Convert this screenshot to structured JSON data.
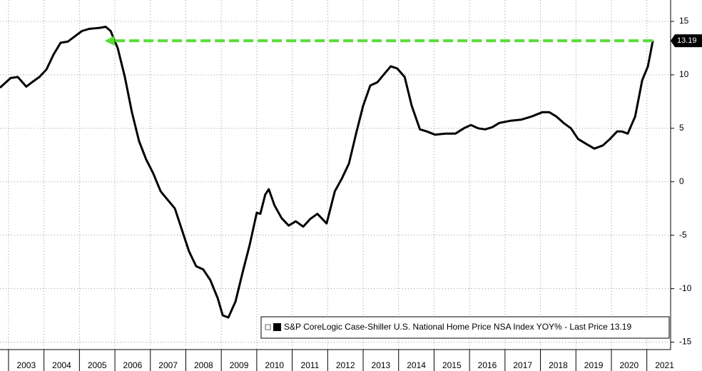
{
  "chart_data": {
    "type": "line",
    "series": [
      {
        "name": "S&P CoreLogic Case-Shiller U.S. National Home Price NSA Index YOY% - Last Price 13.19",
        "color": "#000000",
        "x": [
          2002.76,
          2003.06,
          2003.26,
          2003.5,
          2003.66,
          2003.87,
          2004.07,
          2004.27,
          2004.47,
          2004.67,
          2004.87,
          2005.07,
          2005.27,
          2005.58,
          2005.74,
          2005.88,
          2006.08,
          2006.28,
          2006.48,
          2006.68,
          2006.88,
          2007.08,
          2007.29,
          2007.49,
          2007.69,
          2007.89,
          2008.09,
          2008.29,
          2008.49,
          2008.69,
          2008.9,
          2009.04,
          2009.2,
          2009.4,
          2009.6,
          2009.8,
          2010.0,
          2010.1,
          2010.24,
          2010.34,
          2010.5,
          2010.7,
          2010.9,
          2011.1,
          2011.31,
          2011.5,
          2011.71,
          2011.97,
          2012.2,
          2012.4,
          2012.6,
          2012.8,
          2013.0,
          2013.2,
          2013.4,
          2013.6,
          2013.78,
          2013.96,
          2014.17,
          2014.37,
          2014.6,
          2014.8,
          2015.03,
          2015.33,
          2015.6,
          2015.84,
          2016.04,
          2016.24,
          2016.44,
          2016.64,
          2016.84,
          2017.15,
          2017.45,
          2017.75,
          2018.05,
          2018.25,
          2018.45,
          2018.65,
          2018.86,
          2019.06,
          2019.26,
          2019.52,
          2019.76,
          2019.96,
          2020.16,
          2020.3,
          2020.46,
          2020.67,
          2020.87,
          2021.03,
          2021.17
        ],
        "values": [
          8.8,
          9.7,
          9.8,
          8.9,
          9.3,
          9.8,
          10.5,
          11.9,
          13.0,
          13.1,
          13.6,
          14.1,
          14.3,
          14.4,
          14.5,
          14.1,
          12.5,
          9.8,
          6.5,
          3.8,
          2.1,
          0.8,
          -0.9,
          -1.7,
          -2.5,
          -4.5,
          -6.5,
          -7.9,
          -8.2,
          -9.2,
          -10.9,
          -12.5,
          -12.7,
          -11.2,
          -8.5,
          -5.9,
          -2.9,
          -3.0,
          -1.2,
          -0.7,
          -2.2,
          -3.4,
          -4.1,
          -3.7,
          -4.2,
          -3.5,
          -3.0,
          -3.9,
          -0.9,
          0.3,
          1.7,
          4.5,
          7.1,
          9.0,
          9.3,
          10.1,
          10.8,
          10.6,
          9.8,
          7.1,
          4.9,
          4.7,
          4.4,
          4.5,
          4.5,
          5.0,
          5.3,
          5.0,
          4.9,
          5.1,
          5.5,
          5.7,
          5.8,
          6.1,
          6.5,
          6.5,
          6.1,
          5.5,
          5.0,
          4.0,
          3.6,
          3.1,
          3.4,
          4.0,
          4.7,
          4.7,
          4.5,
          6.1,
          9.5,
          10.8,
          13.19
        ]
      }
    ],
    "last_price": 13.19,
    "arrow_color": "#5bdc3a",
    "xlim": [
      2002.76,
      2021.67
    ],
    "xticks": [
      {
        "value": 2003,
        "label": "2003"
      },
      {
        "value": 2004,
        "label": "2004"
      },
      {
        "value": 2005,
        "label": "2005"
      },
      {
        "value": 2006,
        "label": "2006"
      },
      {
        "value": 2007,
        "label": "2007"
      },
      {
        "value": 2008,
        "label": "2008"
      },
      {
        "value": 2009,
        "label": "2009"
      },
      {
        "value": 2010,
        "label": "2010"
      },
      {
        "value": 2011,
        "label": "2011"
      },
      {
        "value": 2012,
        "label": "2012"
      },
      {
        "value": 2013,
        "label": "2013"
      },
      {
        "value": 2014,
        "label": "2014"
      },
      {
        "value": 2015,
        "label": "2015"
      },
      {
        "value": 2016,
        "label": "2016"
      },
      {
        "value": 2017,
        "label": "2017"
      },
      {
        "value": 2018,
        "label": "2018"
      },
      {
        "value": 2019,
        "label": "2019"
      },
      {
        "value": 2020,
        "label": "2020"
      },
      {
        "value": 2021,
        "label": "2021"
      }
    ],
    "ylim": [
      -15.7,
      17
    ],
    "yticks": [
      -15,
      -10,
      -5,
      0,
      5,
      10,
      15
    ],
    "grid": true
  }
}
